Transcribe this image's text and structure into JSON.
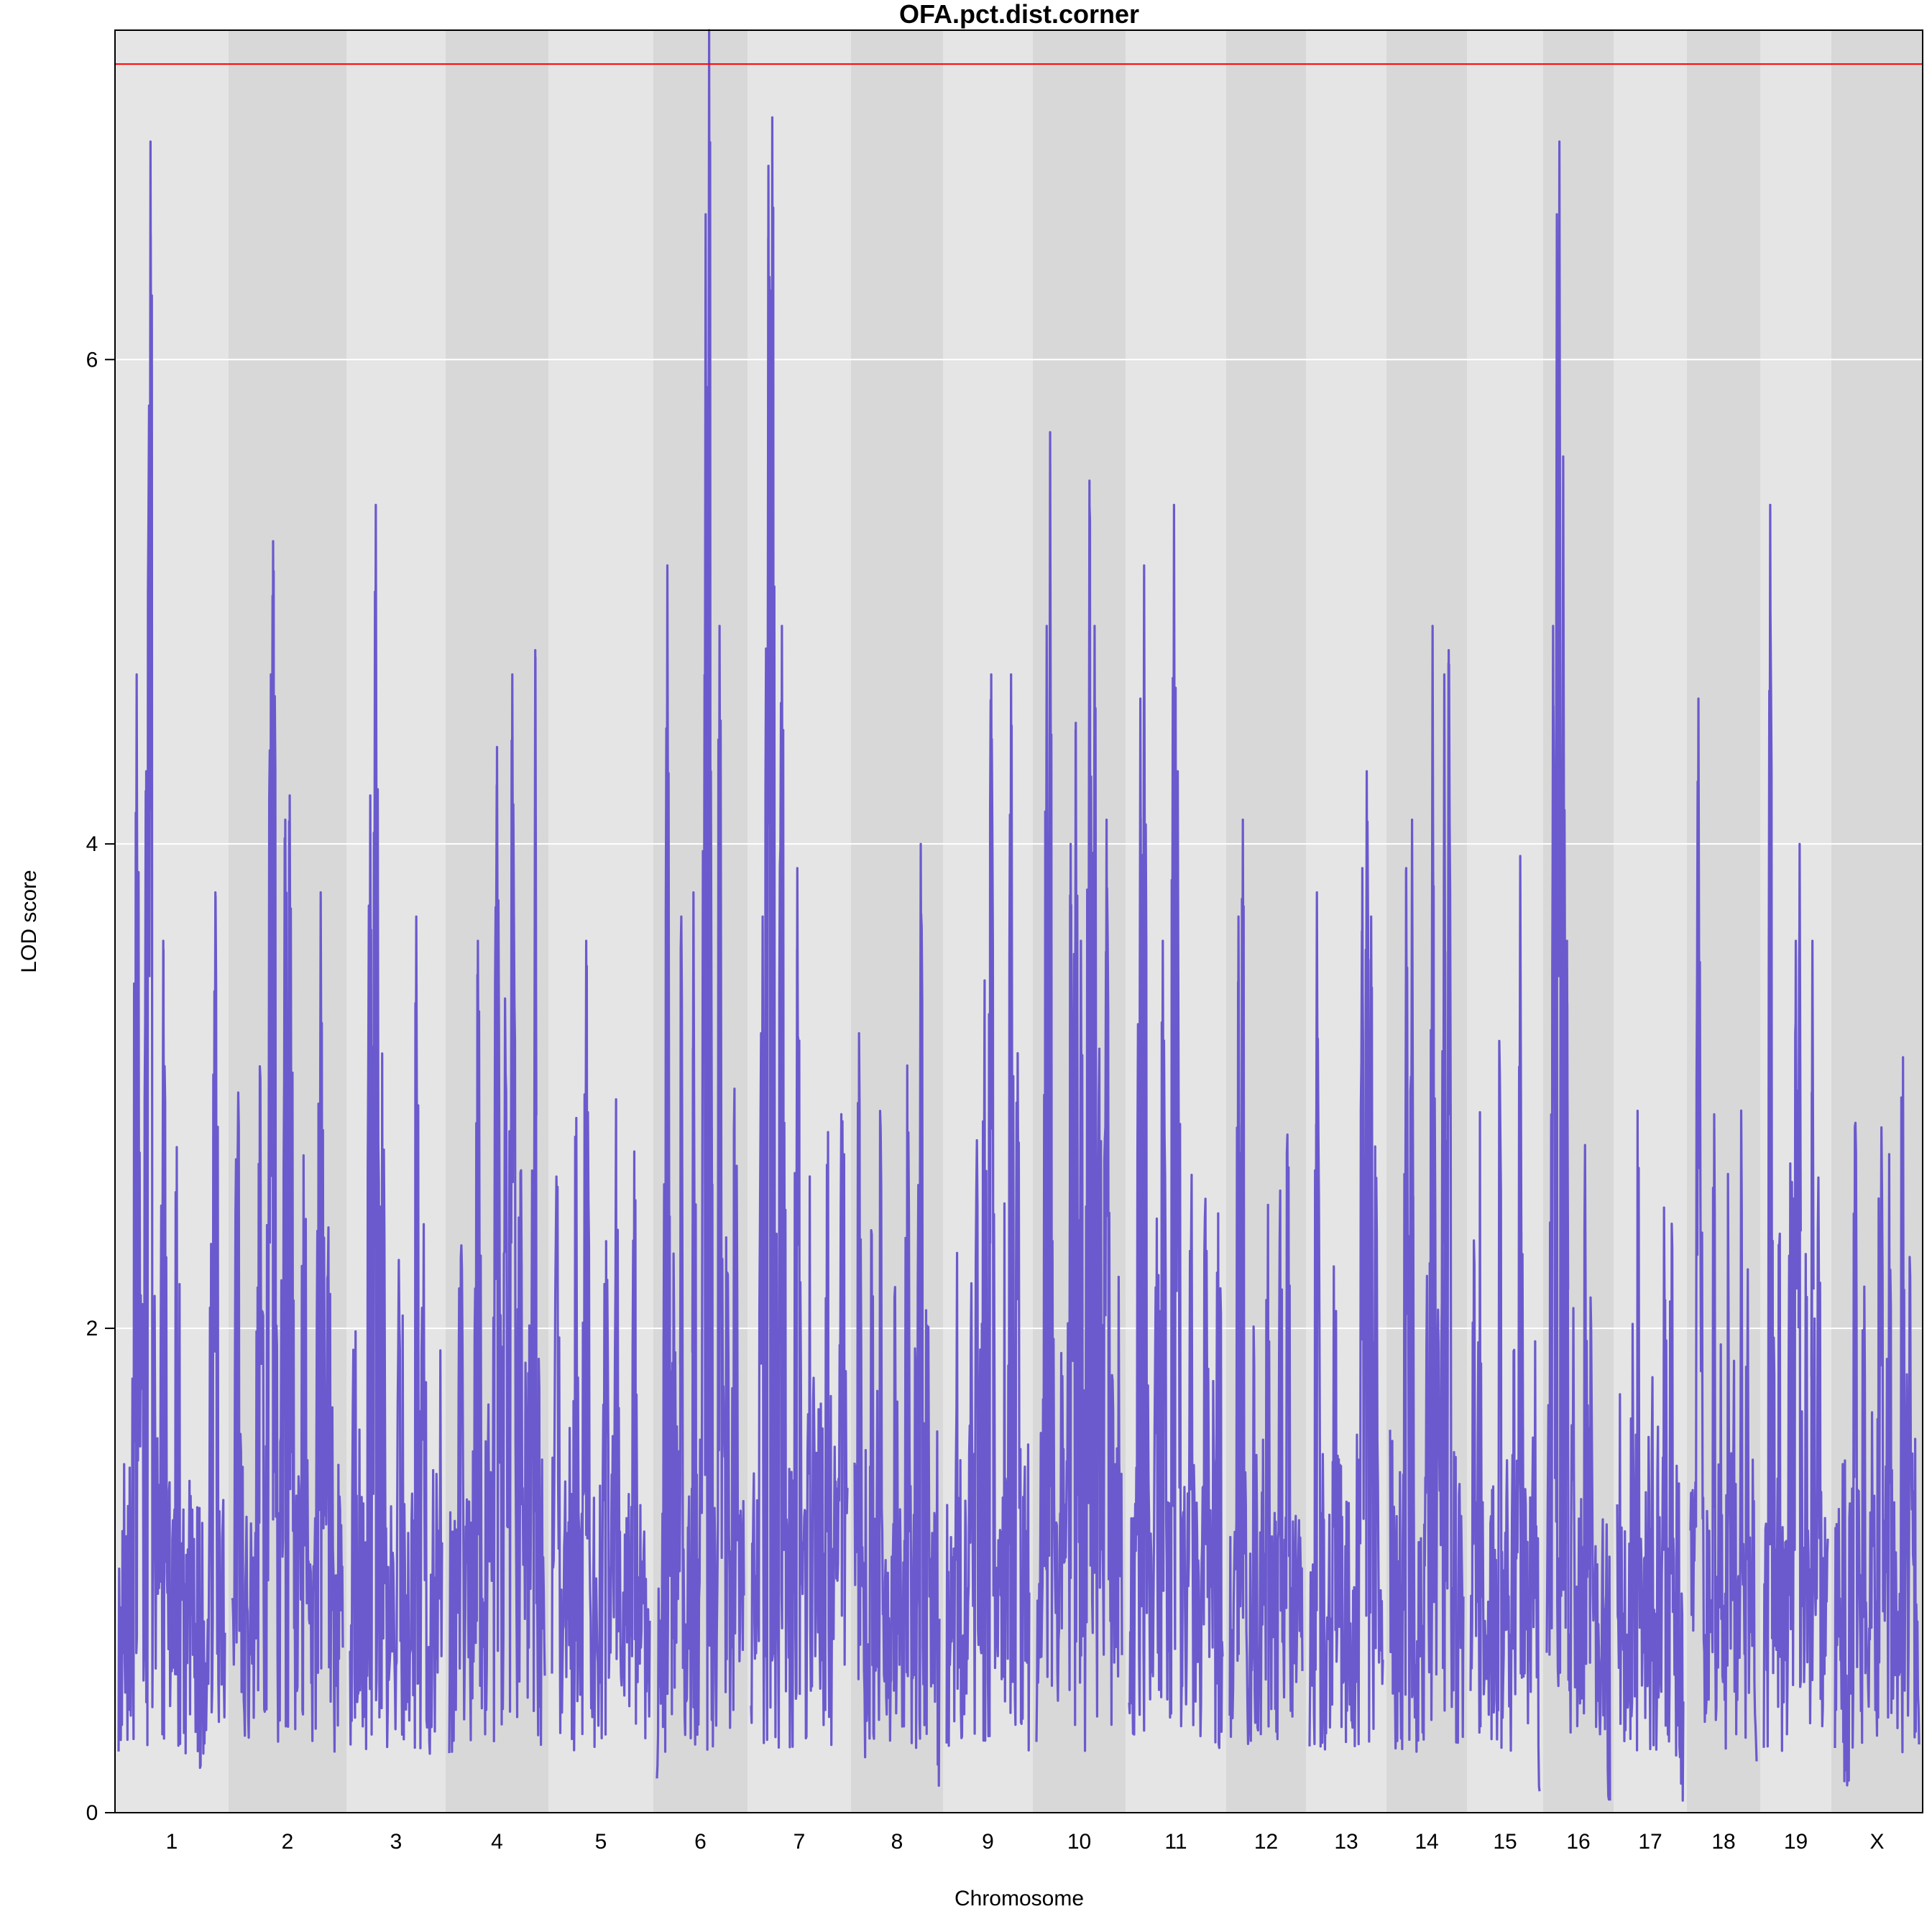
{
  "chart_data": {
    "type": "line",
    "title": "OFA.pct.dist.corner",
    "xlabel": "Chromosome",
    "ylabel": "LOD score",
    "ylim": [
      0,
      7.36
    ],
    "yticks": [
      0,
      2,
      4,
      6
    ],
    "threshold": 7.22,
    "grid": true,
    "colors": {
      "line": "#6A5ACD",
      "threshold": "#FF0000",
      "band_light": "#E5E5E5",
      "band_dark": "#D8D8D8",
      "gridline": "#FFFFFF"
    },
    "chromosomes": [
      {
        "label": "1",
        "peaks": [
          [
            0.05,
            1.5
          ],
          [
            0.12,
            0.6
          ],
          [
            0.17,
            4.7
          ],
          [
            0.22,
            2.4
          ],
          [
            0.26,
            4.3
          ],
          [
            0.3,
            6.9
          ],
          [
            0.34,
            2.2
          ],
          [
            0.42,
            3.6
          ],
          [
            0.5,
            1.0
          ],
          [
            0.55,
            2.9
          ],
          [
            0.63,
            0.4
          ],
          [
            0.68,
            1.5
          ],
          [
            0.78,
            0.3
          ],
          [
            0.88,
            2.6
          ],
          [
            0.91,
            3.8
          ],
          [
            0.96,
            1.2
          ]
        ]
      },
      {
        "label": "2",
        "peaks": [
          [
            0.05,
            3.2
          ],
          [
            0.15,
            1.0
          ],
          [
            0.25,
            3.3
          ],
          [
            0.35,
            4.7
          ],
          [
            0.37,
            5.25
          ],
          [
            0.42,
            1.6
          ],
          [
            0.48,
            4.1
          ],
          [
            0.52,
            4.2
          ],
          [
            0.58,
            1.9
          ],
          [
            0.65,
            2.8
          ],
          [
            0.72,
            1.2
          ],
          [
            0.8,
            3.8
          ],
          [
            0.88,
            2.7
          ],
          [
            0.96,
            1.7
          ]
        ]
      },
      {
        "label": "3",
        "peaks": [
          [
            0.05,
            2.3
          ],
          [
            0.15,
            1.1
          ],
          [
            0.22,
            4.2
          ],
          [
            0.28,
            5.4
          ],
          [
            0.35,
            3.2
          ],
          [
            0.45,
            1.3
          ],
          [
            0.55,
            2.9
          ],
          [
            0.65,
            0.9
          ],
          [
            0.72,
            3.7
          ],
          [
            0.8,
            2.6
          ],
          [
            0.92,
            1.2
          ],
          [
            0.97,
            2.2
          ]
        ]
      },
      {
        "label": "4",
        "peaks": [
          [
            0.05,
            1.4
          ],
          [
            0.12,
            2.5
          ],
          [
            0.2,
            0.7
          ],
          [
            0.3,
            3.6
          ],
          [
            0.4,
            2.0
          ],
          [
            0.5,
            4.4
          ],
          [
            0.58,
            3.5
          ],
          [
            0.66,
            4.7
          ],
          [
            0.74,
            2.9
          ],
          [
            0.82,
            2.6
          ],
          [
            0.9,
            4.8
          ],
          [
            0.97,
            1.5
          ]
        ]
      },
      {
        "label": "5",
        "peaks": [
          [
            0.05,
            2.7
          ],
          [
            0.15,
            1.6
          ],
          [
            0.25,
            3.1
          ],
          [
            0.35,
            3.6
          ],
          [
            0.45,
            1.0
          ],
          [
            0.55,
            2.5
          ],
          [
            0.65,
            3.3
          ],
          [
            0.75,
            1.2
          ],
          [
            0.85,
            2.9
          ],
          [
            0.95,
            1.4
          ]
        ]
      },
      {
        "label": "6",
        "peaks": [
          [
            0.05,
            0.8
          ],
          [
            0.12,
            5.15
          ],
          [
            0.2,
            2.6
          ],
          [
            0.28,
            3.7
          ],
          [
            0.35,
            1.6
          ],
          [
            0.42,
            3.8
          ],
          [
            0.5,
            1.6
          ],
          [
            0.56,
            6.6
          ],
          [
            0.6,
            7.4
          ],
          [
            0.62,
            4.3
          ],
          [
            0.72,
            4.9
          ],
          [
            0.8,
            2.5
          ],
          [
            0.9,
            3.2
          ],
          [
            0.96,
            1.4
          ]
        ]
      },
      {
        "label": "7",
        "peaks": [
          [
            0.05,
            1.5
          ],
          [
            0.12,
            3.7
          ],
          [
            0.18,
            6.8
          ],
          [
            0.22,
            7.0
          ],
          [
            0.26,
            2.6
          ],
          [
            0.32,
            4.9
          ],
          [
            0.4,
            2.0
          ],
          [
            0.48,
            3.9
          ],
          [
            0.55,
            1.5
          ],
          [
            0.62,
            3.0
          ],
          [
            0.72,
            2.0
          ],
          [
            0.8,
            3.1
          ],
          [
            0.88,
            1.8
          ],
          [
            0.95,
            3.3
          ]
        ]
      },
      {
        "label": "8",
        "peaks": [
          [
            0.05,
            3.3
          ],
          [
            0.12,
            0.4
          ],
          [
            0.2,
            2.5
          ],
          [
            0.3,
            3.0
          ],
          [
            0.4,
            1.2
          ],
          [
            0.48,
            2.4
          ],
          [
            0.56,
            0.9
          ],
          [
            0.62,
            3.3
          ],
          [
            0.72,
            2.0
          ],
          [
            0.78,
            4.0
          ],
          [
            0.84,
            3.1
          ],
          [
            0.92,
            1.8
          ]
        ]
      },
      {
        "label": "9",
        "peaks": [
          [
            0.05,
            1.1
          ],
          [
            0.12,
            2.4
          ],
          [
            0.2,
            0.5
          ],
          [
            0.3,
            2.2
          ],
          [
            0.38,
            3.4
          ],
          [
            0.46,
            3.5
          ],
          [
            0.54,
            4.7
          ],
          [
            0.62,
            1.6
          ],
          [
            0.7,
            2.7
          ],
          [
            0.78,
            4.7
          ],
          [
            0.86,
            3.3
          ],
          [
            0.94,
            1.6
          ]
        ]
      },
      {
        "label": "10",
        "peaks": [
          [
            0.05,
            1.7
          ],
          [
            0.12,
            4.9
          ],
          [
            0.16,
            5.7
          ],
          [
            0.22,
            1.0
          ],
          [
            0.3,
            2.2
          ],
          [
            0.4,
            4.0
          ],
          [
            0.46,
            4.5
          ],
          [
            0.52,
            3.6
          ],
          [
            0.58,
            1.2
          ],
          [
            0.62,
            5.5
          ],
          [
            0.68,
            4.9
          ],
          [
            0.74,
            3.2
          ],
          [
            0.82,
            4.1
          ],
          [
            0.88,
            2.0
          ],
          [
            0.95,
            2.4
          ]
        ]
      },
      {
        "label": "11",
        "peaks": [
          [
            0.05,
            1.6
          ],
          [
            0.12,
            4.6
          ],
          [
            0.16,
            5.15
          ],
          [
            0.22,
            1.3
          ],
          [
            0.3,
            2.6
          ],
          [
            0.36,
            3.6
          ],
          [
            0.42,
            1.0
          ],
          [
            0.48,
            5.4
          ],
          [
            0.52,
            4.3
          ],
          [
            0.58,
            1.5
          ],
          [
            0.66,
            2.8
          ],
          [
            0.74,
            1.2
          ],
          [
            0.82,
            2.6
          ],
          [
            0.9,
            1.8
          ],
          [
            0.96,
            2.7
          ]
        ]
      },
      {
        "label": "12",
        "peaks": [
          [
            0.05,
            1.5
          ],
          [
            0.12,
            3.7
          ],
          [
            0.18,
            4.1
          ],
          [
            0.26,
            0.6
          ],
          [
            0.34,
            2.3
          ],
          [
            0.44,
            1.9
          ],
          [
            0.52,
            2.7
          ],
          [
            0.6,
            0.9
          ],
          [
            0.7,
            2.8
          ],
          [
            0.8,
            3.0
          ],
          [
            0.88,
            1.5
          ],
          [
            0.96,
            2.0
          ]
        ]
      },
      {
        "label": "13",
        "peaks": [
          [
            0.05,
            1.9
          ],
          [
            0.1,
            3.8
          ],
          [
            0.18,
            0.6
          ],
          [
            0.26,
            1.2
          ],
          [
            0.34,
            2.6
          ],
          [
            0.42,
            1.6
          ],
          [
            0.52,
            2.1
          ],
          [
            0.62,
            1.0
          ],
          [
            0.72,
            3.9
          ],
          [
            0.78,
            4.3
          ],
          [
            0.84,
            3.7
          ],
          [
            0.9,
            2.9
          ],
          [
            0.96,
            1.2
          ]
        ]
      },
      {
        "label": "14",
        "peaks": [
          [
            0.05,
            2.0
          ],
          [
            0.14,
            1.2
          ],
          [
            0.22,
            3.9
          ],
          [
            0.3,
            4.1
          ],
          [
            0.4,
            1.5
          ],
          [
            0.5,
            2.3
          ],
          [
            0.58,
            4.9
          ],
          [
            0.66,
            2.2
          ],
          [
            0.74,
            4.7
          ],
          [
            0.8,
            4.8
          ],
          [
            0.88,
            1.6
          ],
          [
            0.96,
            2.0
          ]
        ]
      },
      {
        "label": "15",
        "peaks": [
          [
            0.05,
            2.4
          ],
          [
            0.14,
            3.1
          ],
          [
            0.22,
            1.0
          ],
          [
            0.32,
            2.0
          ],
          [
            0.42,
            3.4
          ],
          [
            0.52,
            1.6
          ],
          [
            0.62,
            2.1
          ],
          [
            0.72,
            3.95
          ],
          [
            0.82,
            1.1
          ],
          [
            0.92,
            2.3
          ]
        ]
      },
      {
        "label": "16",
        "peaks": [
          [
            0.05,
            2.6
          ],
          [
            0.1,
            4.9
          ],
          [
            0.16,
            6.6
          ],
          [
            0.2,
            6.9
          ],
          [
            0.26,
            5.6
          ],
          [
            0.32,
            3.6
          ],
          [
            0.42,
            2.2
          ],
          [
            0.52,
            1.0
          ],
          [
            0.62,
            3.2
          ],
          [
            0.7,
            2.5
          ],
          [
            0.8,
            1.1
          ],
          [
            0.9,
            1.6
          ]
        ]
      },
      {
        "label": "17",
        "peaks": [
          [
            0.05,
            2.5
          ],
          [
            0.12,
            1.2
          ],
          [
            0.22,
            2.3
          ],
          [
            0.32,
            3.3
          ],
          [
            0.42,
            1.5
          ],
          [
            0.52,
            2.0
          ],
          [
            0.62,
            1.6
          ],
          [
            0.72,
            2.7
          ],
          [
            0.82,
            2.7
          ],
          [
            0.92,
            0.4
          ]
        ]
      },
      {
        "label": "18",
        "peaks": [
          [
            0.05,
            1.8
          ],
          [
            0.12,
            4.6
          ],
          [
            0.18,
            2.5
          ],
          [
            0.28,
            1.5
          ],
          [
            0.36,
            3.2
          ],
          [
            0.46,
            2.1
          ],
          [
            0.56,
            2.8
          ],
          [
            0.66,
            2.3
          ],
          [
            0.76,
            3.0
          ],
          [
            0.86,
            2.4
          ],
          [
            0.95,
            1.0
          ]
        ]
      },
      {
        "label": "19",
        "peaks": [
          [
            0.05,
            1.4
          ],
          [
            0.1,
            5.4
          ],
          [
            0.16,
            2.2
          ],
          [
            0.24,
            2.6
          ],
          [
            0.34,
            1.0
          ],
          [
            0.42,
            3.3
          ],
          [
            0.5,
            3.6
          ],
          [
            0.56,
            4.0
          ],
          [
            0.66,
            2.4
          ],
          [
            0.76,
            3.6
          ],
          [
            0.86,
            2.8
          ],
          [
            0.95,
            1.5
          ]
        ]
      },
      {
        "label": "X",
        "peaks": [
          [
            0.05,
            1.3
          ],
          [
            0.14,
            0.2
          ],
          [
            0.24,
            2.9
          ],
          [
            0.34,
            2.3
          ],
          [
            0.44,
            1.7
          ],
          [
            0.54,
            3.3
          ],
          [
            0.64,
            2.9
          ],
          [
            0.72,
            1.0
          ],
          [
            0.8,
            3.3
          ],
          [
            0.88,
            2.6
          ],
          [
            0.95,
            1.6
          ]
        ]
      }
    ]
  }
}
